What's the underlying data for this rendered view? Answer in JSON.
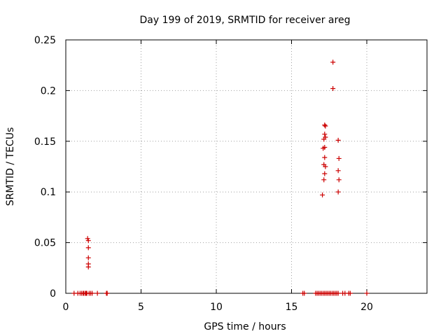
{
  "chart_data": {
    "type": "scatter",
    "title": "Day 199 of 2019, SRMTID for receiver areg",
    "xlabel": "GPS time / hours",
    "ylabel": "SRMTID / TECUs",
    "xlim": [
      0,
      24
    ],
    "ylim": [
      0,
      0.25
    ],
    "x_ticks": [
      0,
      5,
      10,
      15,
      20
    ],
    "y_ticks": [
      0,
      0.05,
      0.1,
      0.15,
      0.2,
      0.25
    ],
    "x_tick_labels": [
      "0",
      "5",
      "10",
      "15",
      "20"
    ],
    "y_tick_labels": [
      "0",
      "0.05",
      "0.1",
      "0.15",
      "0.2",
      "0.25"
    ],
    "grid": true,
    "legend": "none",
    "marker": "+",
    "color": "#cc0000",
    "points": [
      {
        "x": 1.45,
        "y": 0.054
      },
      {
        "x": 1.5,
        "y": 0.052
      },
      {
        "x": 1.5,
        "y": 0.045
      },
      {
        "x": 1.5,
        "y": 0.035
      },
      {
        "x": 1.5,
        "y": 0.029
      },
      {
        "x": 1.5,
        "y": 0.026
      },
      {
        "x": 17.2,
        "y": 0.166
      },
      {
        "x": 17.25,
        "y": 0.165
      },
      {
        "x": 17.2,
        "y": 0.157
      },
      {
        "x": 17.25,
        "y": 0.154
      },
      {
        "x": 17.15,
        "y": 0.152
      },
      {
        "x": 17.2,
        "y": 0.144
      },
      {
        "x": 17.1,
        "y": 0.143
      },
      {
        "x": 17.2,
        "y": 0.134
      },
      {
        "x": 17.15,
        "y": 0.127
      },
      {
        "x": 17.25,
        "y": 0.125
      },
      {
        "x": 17.2,
        "y": 0.118
      },
      {
        "x": 17.15,
        "y": 0.112
      },
      {
        "x": 17.05,
        "y": 0.097
      },
      {
        "x": 17.75,
        "y": 0.228
      },
      {
        "x": 17.75,
        "y": 0.202
      },
      {
        "x": 18.1,
        "y": 0.151
      },
      {
        "x": 18.15,
        "y": 0.133
      },
      {
        "x": 18.1,
        "y": 0.121
      },
      {
        "x": 18.15,
        "y": 0.112
      },
      {
        "x": 18.1,
        "y": 0.1
      },
      {
        "x": 0.55,
        "y": 0
      },
      {
        "x": 0.8,
        "y": 0
      },
      {
        "x": 0.95,
        "y": 0
      },
      {
        "x": 1.05,
        "y": 0
      },
      {
        "x": 1.15,
        "y": 0
      },
      {
        "x": 1.2,
        "y": 0
      },
      {
        "x": 1.3,
        "y": 0
      },
      {
        "x": 1.35,
        "y": 0
      },
      {
        "x": 1.4,
        "y": 0
      },
      {
        "x": 1.55,
        "y": 0
      },
      {
        "x": 1.65,
        "y": 0
      },
      {
        "x": 1.75,
        "y": 0
      },
      {
        "x": 2.1,
        "y": 0
      },
      {
        "x": 2.7,
        "y": 0
      },
      {
        "x": 2.75,
        "y": 0
      },
      {
        "x": 15.75,
        "y": 0
      },
      {
        "x": 15.85,
        "y": 0
      },
      {
        "x": 16.6,
        "y": 0
      },
      {
        "x": 16.7,
        "y": 0
      },
      {
        "x": 16.8,
        "y": 0
      },
      {
        "x": 16.9,
        "y": 0
      },
      {
        "x": 17.0,
        "y": 0
      },
      {
        "x": 17.1,
        "y": 0
      },
      {
        "x": 17.2,
        "y": 0
      },
      {
        "x": 17.3,
        "y": 0
      },
      {
        "x": 17.4,
        "y": 0
      },
      {
        "x": 17.5,
        "y": 0
      },
      {
        "x": 17.6,
        "y": 0
      },
      {
        "x": 17.7,
        "y": 0
      },
      {
        "x": 17.8,
        "y": 0
      },
      {
        "x": 17.9,
        "y": 0
      },
      {
        "x": 18.0,
        "y": 0
      },
      {
        "x": 18.1,
        "y": 0
      },
      {
        "x": 18.4,
        "y": 0
      },
      {
        "x": 18.55,
        "y": 0
      },
      {
        "x": 18.8,
        "y": 0
      },
      {
        "x": 18.9,
        "y": 0
      },
      {
        "x": 20.0,
        "y": 0
      }
    ]
  }
}
